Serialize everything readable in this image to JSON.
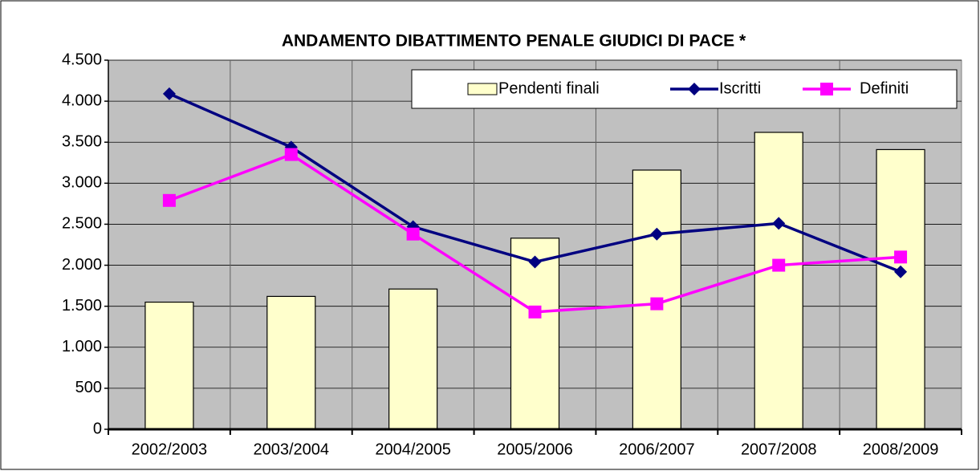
{
  "chart_data": {
    "type": "bar",
    "title": "ANDAMENTO DIBATTIMENTO PENALE GIUDICI DI PACE *",
    "categories": [
      "2002/2003",
      "2003/2004",
      "2004/2005",
      "2005/2006",
      "2006/2007",
      "2007/2008",
      "2008/2009"
    ],
    "series": [
      {
        "name": "Pendenti finali",
        "type": "bar",
        "color": "#ffffcc",
        "values": [
          1550,
          1620,
          1710,
          2330,
          3160,
          3620,
          3410
        ]
      },
      {
        "name": "Iscritti",
        "type": "line",
        "marker": "diamond",
        "color": "#000080",
        "values": [
          4090,
          3440,
          2470,
          2040,
          2380,
          2510,
          1920
        ]
      },
      {
        "name": "Definiti",
        "type": "line",
        "marker": "square",
        "color": "#ff00ff",
        "values": [
          2790,
          3350,
          2380,
          1430,
          1530,
          2000,
          2100
        ]
      }
    ],
    "ylim": [
      0,
      4500
    ],
    "yticks": [
      0,
      500,
      {
        "value": 1000,
        "label": "1.000"
      },
      {
        "value": 1500,
        "label": "1.500"
      },
      {
        "value": 2000,
        "label": "2.000"
      },
      {
        "value": 2500,
        "label": "2.500"
      },
      {
        "value": 3000,
        "label": "3.000"
      },
      {
        "value": 3500,
        "label": "3.500"
      },
      {
        "value": 4000,
        "label": "4.000"
      },
      {
        "value": 4500,
        "label": "4.500"
      }
    ],
    "grid": true,
    "legend": "top-right",
    "plot_background": "#c0c0c0"
  }
}
